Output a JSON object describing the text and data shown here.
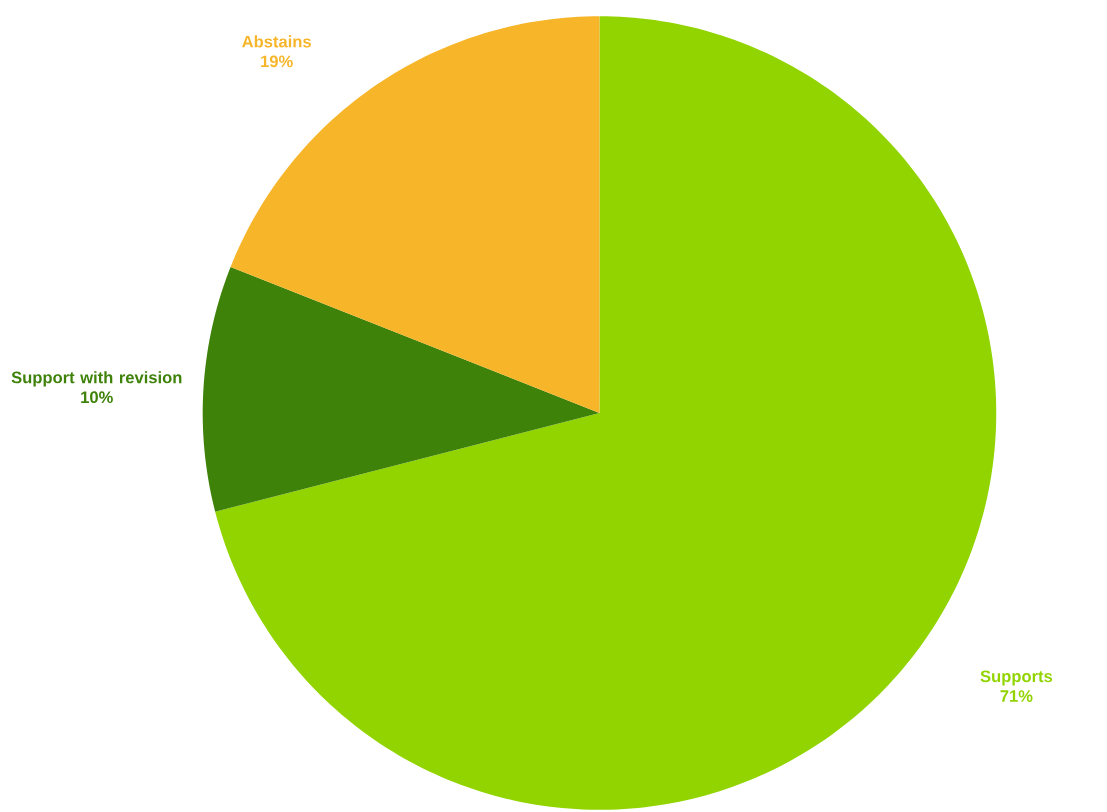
{
  "chart_data": {
    "type": "pie",
    "categories": [
      "Supports",
      "Support with revision",
      "Abstains"
    ],
    "values": [
      71,
      10,
      19
    ],
    "value_labels": [
      "71%",
      "10%",
      "19%"
    ],
    "colors": [
      "#92d400",
      "#3f820a",
      "#f7b52a"
    ]
  }
}
